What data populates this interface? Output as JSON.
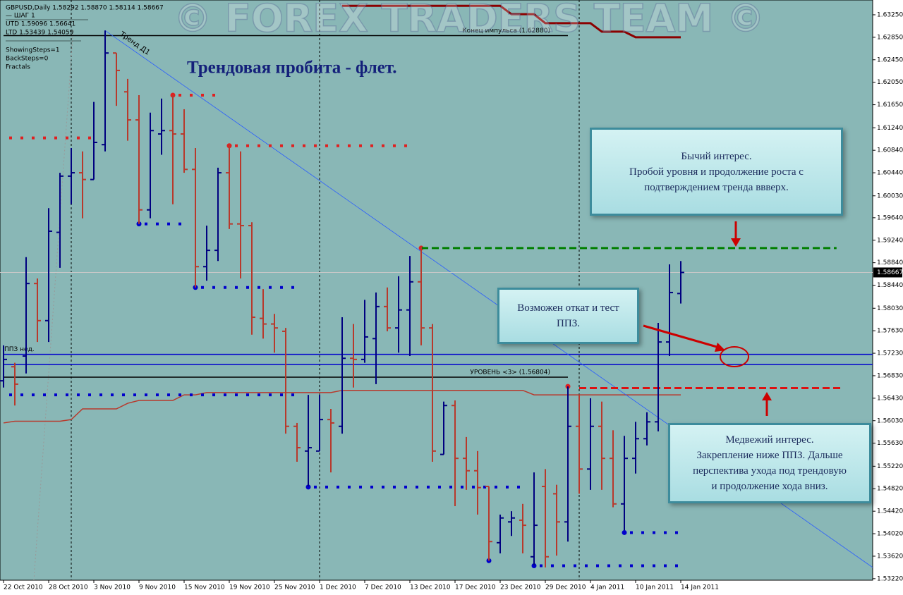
{
  "header": {
    "lines": [
      "GBPUSD,Daily  1.58292 1.58870 1.58114 1.58667",
      "—    ШАГ 1",
      "UTD 1.59096  1.56641",
      "LTD  1.53439  1.54059",
      "ShowingSteps=1",
      "BackSteps=0",
      "Fractals"
    ]
  },
  "watermark": "© FOREX TRADERS TEAM ©",
  "notes": [
    {
      "lines": [
        "Бычий интерес.",
        "Пробой уровня и продолжение роста с",
        "подтверждением тренда ввверх."
      ]
    },
    {
      "lines": [
        "Возможен откат и тест",
        "ППЗ."
      ]
    },
    {
      "lines": [
        "Медвежий интерес.",
        "Закрепление ниже ППЗ. Дальше",
        "перспектива ухода под трендовую",
        "и продолжение хода вниз."
      ]
    }
  ],
  "chart_data": {
    "type": "ohlc",
    "title": "Трендовая пробита - флет.",
    "categories": [
      "22 Oct 2010",
      null,
      null,
      null,
      "28 Oct 2010",
      null,
      null,
      null,
      "3 Nov 2010",
      null,
      null,
      null,
      "9 Nov 2010",
      null,
      null,
      null,
      "15 Nov 2010",
      null,
      null,
      null,
      "19 Nov 2010",
      null,
      null,
      null,
      "25 Nov 2010",
      null,
      null,
      null,
      "1 Dec 2010",
      null,
      null,
      null,
      "7 Dec 2010",
      null,
      null,
      null,
      "13 Dec 2010",
      null,
      null,
      null,
      "17 Dec 2010",
      null,
      null,
      null,
      "23 Dec 2010",
      null,
      null,
      null,
      "29 Dec 2010",
      null,
      null,
      null,
      "4 Jan 2011",
      null,
      null,
      null,
      "10 Jan 2011",
      null,
      null,
      null,
      "14 Jan 2011"
    ],
    "open": [
      1.5674,
      1.5699,
      1.5718,
      1.5847,
      1.5781,
      1.5938,
      1.6038,
      1.6044,
      1.6032,
      1.6094,
      1.6257,
      1.6188,
      1.6138,
      1.5978,
      1.6113,
      1.6119,
      1.6113,
      1.605,
      1.5877,
      1.5906,
      1.6044,
      1.5953,
      1.595,
      1.5785,
      1.5775,
      1.5762,
      1.5593,
      1.5549,
      1.5549,
      1.5605,
      1.5593,
      1.5714,
      1.5712,
      1.5749,
      1.5806,
      1.5768,
      1.58,
      1.585,
      1.5768,
      1.5543,
      1.563,
      1.5536,
      1.5514,
      1.5486,
      1.5386,
      1.5423,
      1.5426,
      1.5361,
      1.5486,
      1.5473,
      1.5423,
      1.5593,
      1.5517,
      1.5593,
      1.5536,
      1.5455,
      1.5536,
      1.5571,
      1.5601,
      1.5743,
      1.58292
    ],
    "high": [
      1.5737,
      1.5706,
      1.5894,
      1.5856,
      1.5981,
      1.6044,
      1.6088,
      1.6082,
      1.617,
      1.6297,
      1.6257,
      1.6211,
      1.6182,
      1.6151,
      1.6176,
      1.6182,
      1.6157,
      1.6088,
      1.595,
      1.6053,
      1.6094,
      1.6082,
      1.5956,
      1.5837,
      1.5793,
      1.5768,
      1.5599,
      1.5649,
      1.5649,
      1.5624,
      1.5787,
      1.5775,
      1.5818,
      1.5831,
      1.584,
      1.586,
      1.5896,
      1.5912,
      1.5775,
      1.5637,
      1.5639,
      1.5574,
      1.5549,
      1.5486,
      1.5436,
      1.5442,
      1.5455,
      1.5511,
      1.5517,
      1.5489,
      1.5664,
      1.5649,
      1.5643,
      1.5637,
      1.5586,
      1.5576,
      1.5601,
      1.5618,
      1.5777,
      1.5881,
      1.5887
    ],
    "low": [
      1.5662,
      1.563,
      1.5687,
      1.5743,
      1.5743,
      1.5875,
      1.5988,
      1.5963,
      1.6032,
      1.6082,
      1.6163,
      1.6101,
      1.5953,
      1.5963,
      1.6076,
      1.5988,
      1.6044,
      1.584,
      1.5852,
      1.5887,
      1.5944,
      1.5856,
      1.5756,
      1.5749,
      1.5724,
      1.558,
      1.553,
      1.5486,
      1.5549,
      1.5511,
      1.558,
      1.5662,
      1.5706,
      1.5668,
      1.5762,
      1.5724,
      1.5718,
      1.5737,
      1.553,
      1.5543,
      1.5451,
      1.548,
      1.5436,
      1.5354,
      1.5367,
      1.5398,
      1.5367,
      1.5346,
      1.5342,
      1.5363,
      1.5388,
      1.5473,
      1.548,
      1.548,
      1.5449,
      1.5408,
      1.5509,
      1.5559,
      1.5584,
      1.5718,
      1.58114
    ],
    "close": [
      1.5712,
      1.5668,
      1.5847,
      1.5781,
      1.594,
      1.6038,
      1.6044,
      1.6032,
      1.6098,
      1.6257,
      1.6226,
      1.6138,
      1.5978,
      1.6119,
      1.6119,
      1.6113,
      1.605,
      1.5877,
      1.5906,
      1.6044,
      1.5953,
      1.595,
      1.5787,
      1.5775,
      1.5768,
      1.5593,
      1.5555,
      1.5555,
      1.5605,
      1.5599,
      1.5714,
      1.5712,
      1.5752,
      1.5806,
      1.5768,
      1.58,
      1.585,
      1.5768,
      1.5549,
      1.563,
      1.5536,
      1.5514,
      1.5484,
      1.5388,
      1.543,
      1.543,
      1.5417,
      1.5417,
      1.5361,
      1.5423,
      1.5593,
      1.5517,
      1.5593,
      1.5536,
      1.5455,
      1.5536,
      1.5571,
      1.5601,
      1.5743,
      1.5831,
      1.58667
    ],
    "up_color": "#000080",
    "down_color": "#b8392c",
    "upper_band": {
      "color": "#8b0000",
      "values": [
        null,
        null,
        null,
        null,
        null,
        null,
        null,
        null,
        null,
        null,
        null,
        null,
        null,
        null,
        null,
        null,
        null,
        null,
        null,
        null,
        null,
        null,
        null,
        null,
        null,
        null,
        null,
        null,
        null,
        null,
        1.6341,
        1.6341,
        1.6341,
        1.6341,
        1.6341,
        1.6341,
        1.6341,
        1.6341,
        1.6341,
        1.6341,
        1.6341,
        1.6341,
        1.6341,
        1.6341,
        1.6341,
        1.6326,
        1.6326,
        1.6326,
        1.631,
        1.631,
        1.631,
        1.631,
        1.631,
        1.6295,
        1.6295,
        1.6295,
        1.6285,
        1.6285,
        1.6285,
        1.6285,
        1.6285
      ]
    },
    "lower_band": {
      "color": "#b8392c",
      "values": [
        1.5599,
        1.5602,
        1.5602,
        1.5602,
        1.5602,
        1.5602,
        1.5605,
        1.5624,
        1.5624,
        1.5624,
        1.5624,
        1.5634,
        1.5639,
        1.5639,
        1.5639,
        1.5639,
        1.5649,
        1.5649,
        1.5653,
        1.5653,
        1.5653,
        1.5653,
        1.5653,
        1.5653,
        1.5653,
        1.5653,
        1.5653,
        1.5653,
        1.5653,
        1.5653,
        1.5657,
        1.5657,
        1.5657,
        1.5657,
        1.5657,
        1.5657,
        1.5657,
        1.5657,
        1.5657,
        1.5657,
        1.5657,
        1.5657,
        1.5657,
        1.5657,
        1.5657,
        1.5657,
        1.5657,
        1.5649,
        1.5649,
        1.5649,
        1.5649,
        1.5649,
        1.5649,
        1.5649,
        1.5649,
        1.5649,
        1.5649,
        1.5649,
        1.5649,
        1.5649,
        1.5649
      ]
    },
    "trend": {
      "label": "Тренд Д1",
      "from": [
        9,
        1.6297
      ],
      "to": [
        77,
        1.5342
      ],
      "color": "#2a5cff"
    },
    "levels": [
      {
        "label": "Конец импульса    (1.62880)",
        "price": 1.6288,
        "from": 0,
        "to": 50,
        "color": "#000000"
      },
      {
        "label": "УРОВЕНЬ <3>    (1.56804)",
        "price": 1.56804,
        "from": 0,
        "to": 50,
        "color": "#000000"
      },
      {
        "label": "ППЗ нед.",
        "price": 1.5721,
        "from": 0,
        "to": 77,
        "color": "#0000cd"
      },
      {
        "price": 1.5703,
        "from": 0,
        "to": 77,
        "color": "#0000cd"
      }
    ],
    "dashed": [
      {
        "price": 1.591,
        "from": 37,
        "to": 73.8,
        "color": "#008000"
      },
      {
        "price": 1.5661,
        "from": 51,
        "to": 74.4,
        "color": "#dd1111"
      }
    ],
    "fractals": [
      {
        "price": 1.6106,
        "from": 0,
        "to": 8,
        "color": "#e02020",
        "dot": false
      },
      {
        "price": 1.6182,
        "from": 15,
        "to": 19,
        "color": "#e02020",
        "dot": true
      },
      {
        "price": 1.6092,
        "from": 20,
        "to": 36,
        "color": "#e02020",
        "dot": true
      },
      {
        "price": 1.591,
        "from": 37,
        "to": 37,
        "color": "#e02020",
        "dot": true
      },
      {
        "price": 1.5664,
        "from": 50,
        "to": 50,
        "color": "#e02020",
        "dot": true
      },
      {
        "price": 1.5953,
        "from": 12,
        "to": 16,
        "color": "#0000cc",
        "dot": true
      },
      {
        "price": 1.584,
        "from": 17,
        "to": 26,
        "color": "#0000cc",
        "dot": true
      },
      {
        "price": 1.5649,
        "from": 0,
        "to": 26,
        "color": "#0000cc",
        "dot": false
      },
      {
        "price": 1.5485,
        "from": 27,
        "to": 46,
        "color": "#0000cc",
        "dot": true
      },
      {
        "price": 1.5354,
        "from": 43,
        "to": 43,
        "color": "#0000cc",
        "dot": true
      },
      {
        "price": 1.5345,
        "from": 47,
        "to": 60,
        "color": "#0000cc",
        "dot": true
      },
      {
        "price": 1.5404,
        "from": 55,
        "to": 60,
        "color": "#0000cc",
        "dot": true
      }
    ],
    "ylim": [
      1.53193,
      1.63513
    ],
    "yticks": [
      {
        "value": 1.6325,
        "label": "1.63250"
      },
      {
        "value": 1.6285,
        "label": "1.62850"
      },
      {
        "value": 1.6245,
        "label": "1.62450"
      },
      {
        "value": 1.6205,
        "label": "1.62050"
      },
      {
        "value": 1.6165,
        "label": "1.61650"
      },
      {
        "value": 1.6124,
        "label": "1.61240"
      },
      {
        "value": 1.6084,
        "label": "1.60840"
      },
      {
        "value": 1.6044,
        "label": "1.60440"
      },
      {
        "value": 1.6003,
        "label": "1.60030"
      },
      {
        "value": 1.5964,
        "label": "1.59640"
      },
      {
        "value": 1.5924,
        "label": "1.59240"
      },
      {
        "value": 1.5884,
        "label": "1.58840"
      },
      {
        "value": 1.5844,
        "label": "1.58440"
      },
      {
        "value": 1.5803,
        "label": "1.58030"
      },
      {
        "value": 1.5763,
        "label": "1.57630"
      },
      {
        "value": 1.5723,
        "label": "1.57230"
      },
      {
        "value": 1.5683,
        "label": "1.56830"
      },
      {
        "value": 1.5643,
        "label": "1.56430"
      },
      {
        "value": 1.5603,
        "label": "1.56030"
      },
      {
        "value": 1.5563,
        "label": "1.55630"
      },
      {
        "value": 1.5522,
        "label": "1.55220"
      },
      {
        "value": 1.5482,
        "label": "1.54820"
      },
      {
        "value": 1.5442,
        "label": "1.54420"
      },
      {
        "value": 1.5402,
        "label": "1.54020"
      },
      {
        "value": 1.5362,
        "label": "1.53620"
      },
      {
        "value": 1.5322,
        "label": "1.53220"
      }
    ]
  }
}
